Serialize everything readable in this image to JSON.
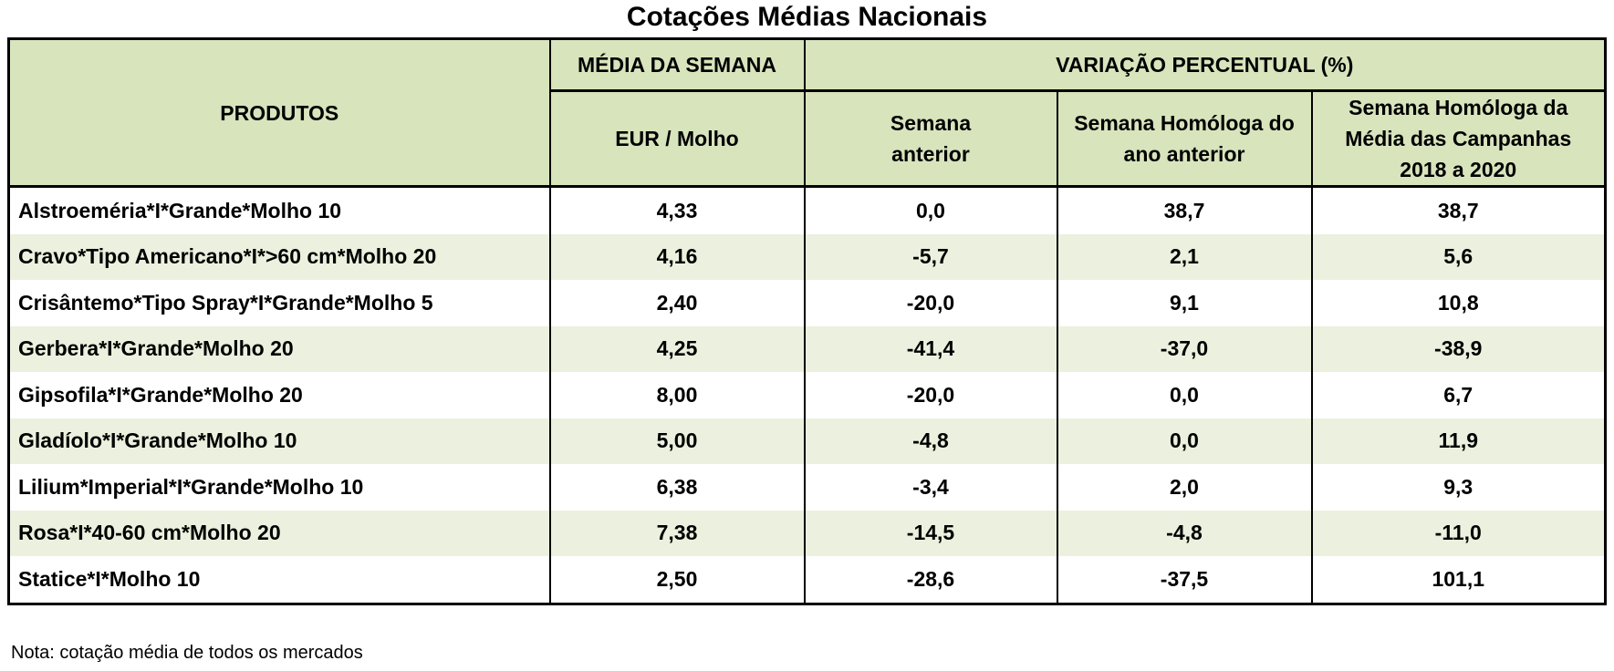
{
  "title": "Cotações Médias Nacionais",
  "headers": {
    "produtos": "PRODUTOS",
    "media_semana": "MÉDIA DA SEMANA",
    "unit": "EUR / Molho",
    "variacao": "VARIAÇÃO PERCENTUAL (%)",
    "semana_anterior": "Semana anterior",
    "homologa_ano": "Semana Homóloga do ano anterior",
    "homologa_campanhas": "Semana Homóloga da Média das Campanhas 2018 a 2020"
  },
  "rows": [
    {
      "produto": "Alstroeméria*I*Grande*Molho 10",
      "media": "4,33",
      "sem_ant": "0,0",
      "hom_ano": "38,7",
      "hom_camp": "38,7"
    },
    {
      "produto": "Cravo*Tipo Americano*I*>60 cm*Molho 20",
      "media": "4,16",
      "sem_ant": "-5,7",
      "hom_ano": "2,1",
      "hom_camp": "5,6"
    },
    {
      "produto": "Crisântemo*Tipo Spray*I*Grande*Molho 5",
      "media": "2,40",
      "sem_ant": "-20,0",
      "hom_ano": "9,1",
      "hom_camp": "10,8"
    },
    {
      "produto": "Gerbera*I*Grande*Molho 20",
      "media": "4,25",
      "sem_ant": "-41,4",
      "hom_ano": "-37,0",
      "hom_camp": "-38,9"
    },
    {
      "produto": "Gipsofila*I*Grande*Molho 20",
      "media": "8,00",
      "sem_ant": "-20,0",
      "hom_ano": "0,0",
      "hom_camp": "6,7"
    },
    {
      "produto": "Gladíolo*I*Grande*Molho 10",
      "media": "5,00",
      "sem_ant": "-4,8",
      "hom_ano": "0,0",
      "hom_camp": "11,9"
    },
    {
      "produto": "Lilium*Imperial*I*Grande*Molho 10",
      "media": "6,38",
      "sem_ant": "-3,4",
      "hom_ano": "2,0",
      "hom_camp": "9,3"
    },
    {
      "produto": "Rosa*I*40-60 cm*Molho 20",
      "media": "7,38",
      "sem_ant": "-14,5",
      "hom_ano": "-4,8",
      "hom_camp": "-11,0"
    },
    {
      "produto": "Statice*I*Molho 10",
      "media": "2,50",
      "sem_ant": "-28,6",
      "hom_ano": "-37,5",
      "hom_camp": "101,1"
    }
  ],
  "note": "Nota: cotação média de todos os mercados",
  "colors": {
    "header_bg": "#d8e4bc",
    "alt_row_bg": "#ebf1de"
  }
}
